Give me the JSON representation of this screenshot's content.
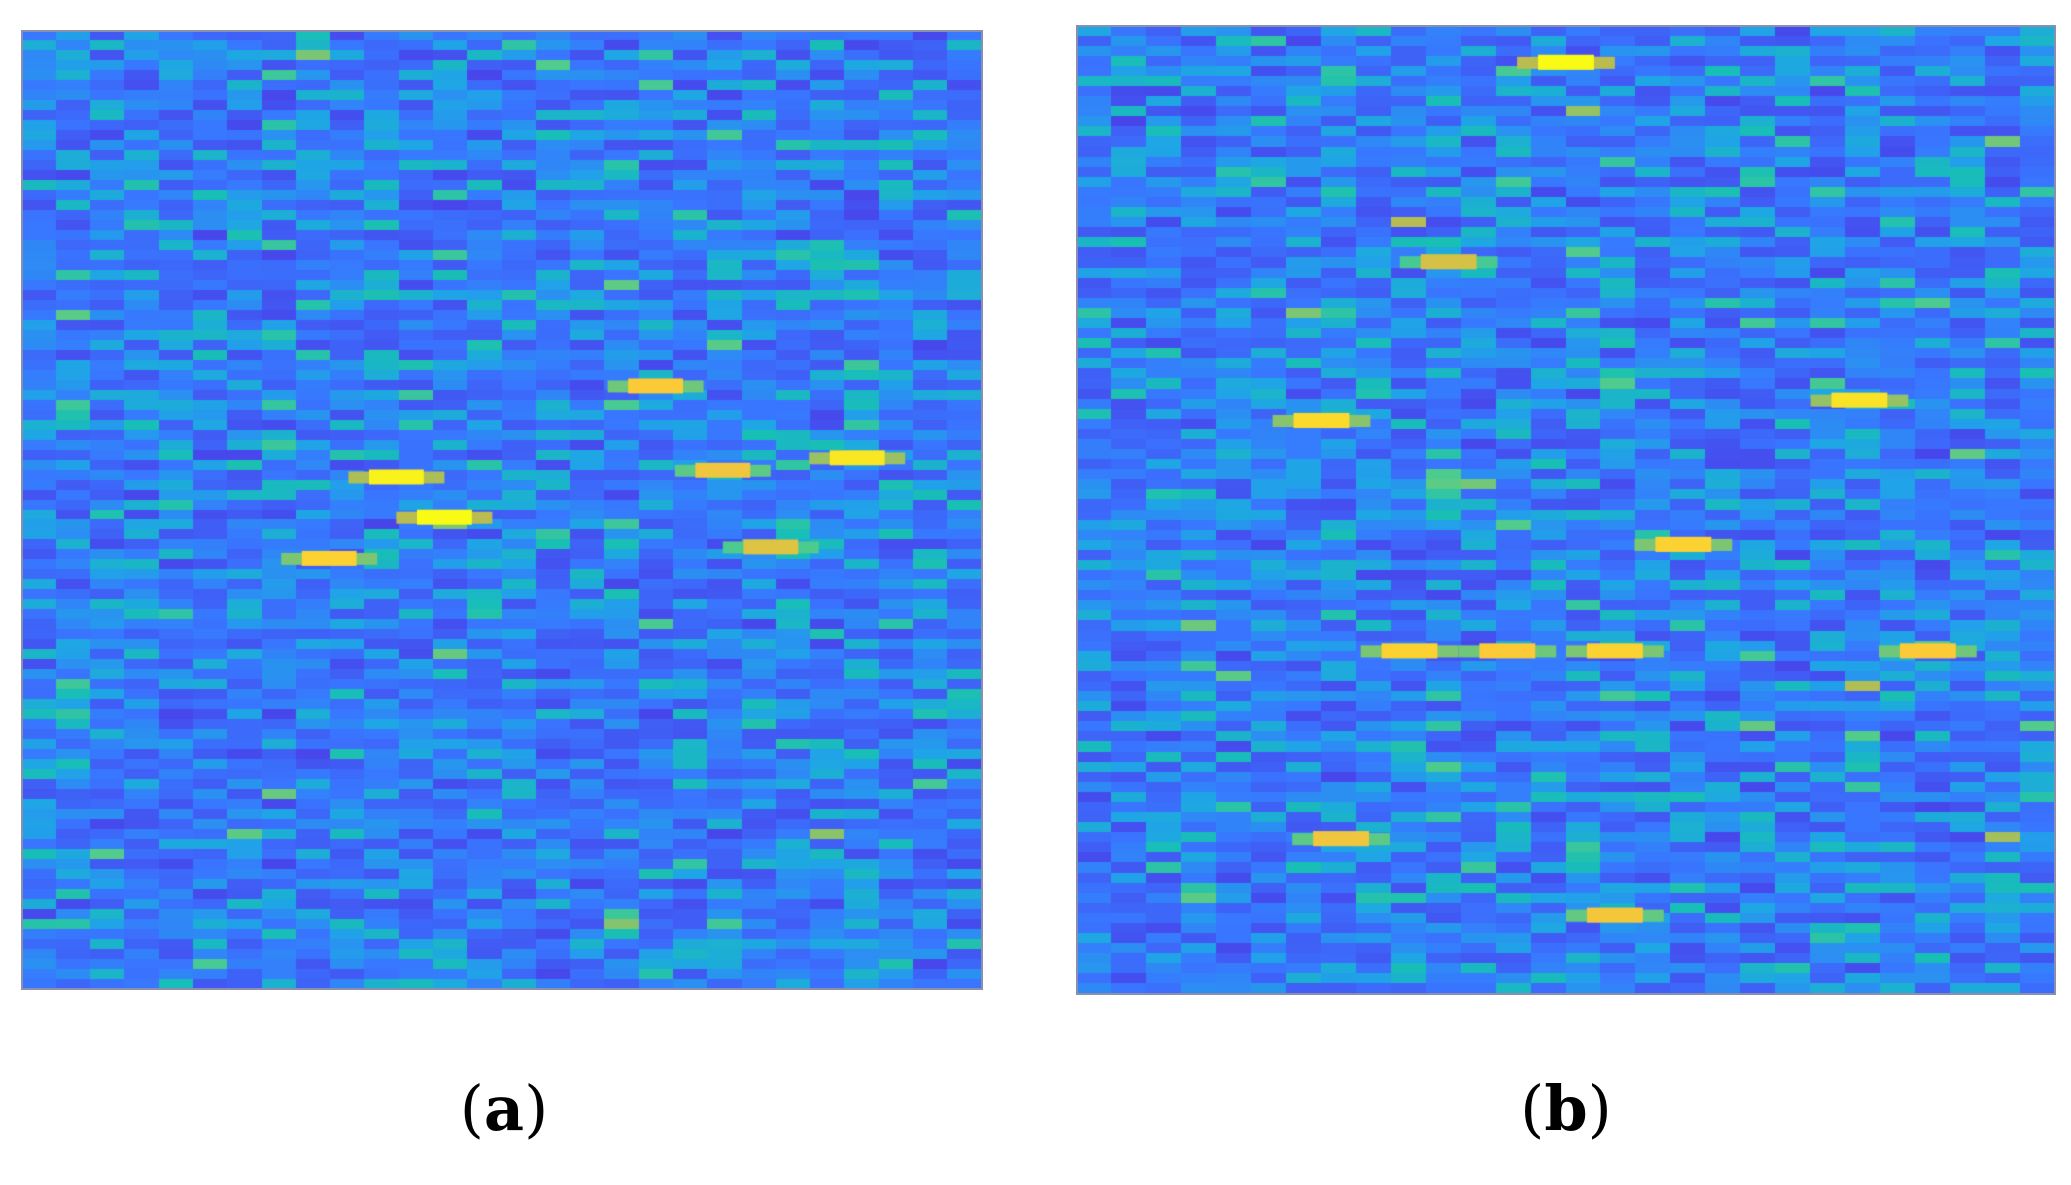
{
  "chart_data": [
    {
      "type": "heatmap",
      "panel_label": "a",
      "colormap": "parula",
      "colormap_stops": [
        "#3e26a8",
        "#4746eb",
        "#3877ff",
        "#1fa5e6",
        "#18bfb5",
        "#52cc8b",
        "#bbbc50",
        "#fcc838",
        "#f9fb15"
      ],
      "hotspots_normalized_intensity": [
        {
          "row": 0.465,
          "col": 0.39,
          "value": 0.98
        },
        {
          "row": 0.507,
          "col": 0.44,
          "value": 1.0
        },
        {
          "row": 0.55,
          "col": 0.32,
          "value": 0.9
        },
        {
          "row": 0.458,
          "col": 0.73,
          "value": 0.85
        },
        {
          "row": 0.445,
          "col": 0.87,
          "value": 0.95
        },
        {
          "row": 0.37,
          "col": 0.66,
          "value": 0.88
        },
        {
          "row": 0.538,
          "col": 0.78,
          "value": 0.82
        }
      ],
      "grid": false,
      "axes_visible": false
    },
    {
      "type": "heatmap",
      "panel_label": "b",
      "colormap": "parula",
      "colormap_stops": [
        "#3e26a8",
        "#4746eb",
        "#3877ff",
        "#1fa5e6",
        "#18bfb5",
        "#52cc8b",
        "#bbbc50",
        "#fcc838",
        "#f9fb15"
      ],
      "hotspots_normalized_intensity": [
        {
          "row": 0.037,
          "col": 0.5,
          "value": 1.0
        },
        {
          "row": 0.407,
          "col": 0.25,
          "value": 0.92
        },
        {
          "row": 0.386,
          "col": 0.8,
          "value": 0.94
        },
        {
          "row": 0.535,
          "col": 0.62,
          "value": 0.9
        },
        {
          "row": 0.645,
          "col": 0.34,
          "value": 0.9
        },
        {
          "row": 0.645,
          "col": 0.44,
          "value": 0.88
        },
        {
          "row": 0.645,
          "col": 0.55,
          "value": 0.9
        },
        {
          "row": 0.645,
          "col": 0.87,
          "value": 0.88
        },
        {
          "row": 0.839,
          "col": 0.27,
          "value": 0.85
        },
        {
          "row": 0.918,
          "col": 0.55,
          "value": 0.86
        },
        {
          "row": 0.243,
          "col": 0.38,
          "value": 0.8
        }
      ],
      "grid": false,
      "axes_visible": false
    }
  ],
  "labels": {
    "a": {
      "open": "(",
      "letter": "a",
      "close": ")"
    },
    "b": {
      "open": "(",
      "letter": "b",
      "close": ")"
    }
  }
}
